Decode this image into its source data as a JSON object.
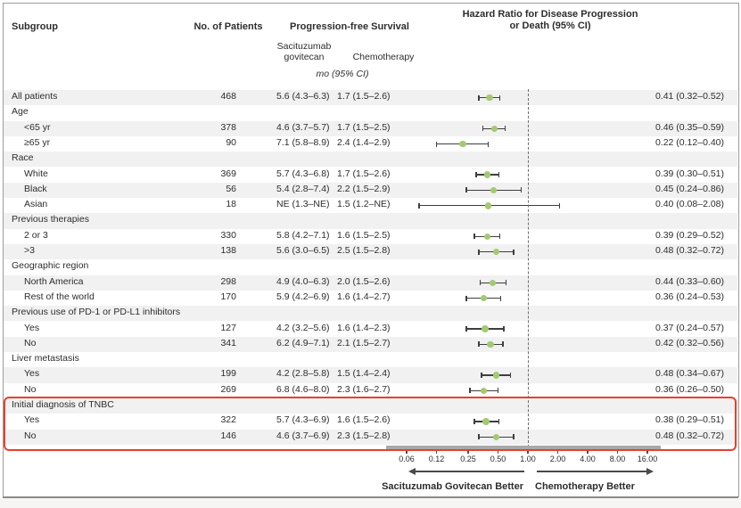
{
  "header": {
    "subgroup": "Subgroup",
    "no_of_patients": "No. of Patients",
    "pfs_title": "Progression-free Survival",
    "hr_title_line1": "Hazard Ratio for Disease Progression",
    "hr_title_line2": "or Death (95% CI)",
    "col_sg_line1": "Sacituzumab",
    "col_sg_line2": "govitecan",
    "col_chemo": "Chemotherapy",
    "units": "mo (95% CI)"
  },
  "footer": {
    "left_label": "Sacituzumab Govitecan Better",
    "right_label": "Chemotherapy Better"
  },
  "axis": {
    "tick_labels": [
      "0.06",
      "0.12",
      "0.25",
      "0.50",
      "1.00",
      "2.00",
      "4.00",
      "8.00",
      "16.00"
    ],
    "tick_values": [
      0.06,
      0.12,
      0.25,
      0.5,
      1.0,
      2.0,
      4.0,
      8.0,
      16.0
    ],
    "reference_value": 1.0
  },
  "rows": [
    {
      "label": "All patients",
      "indent": 0,
      "n": "468",
      "sg": "5.6 (4.3–6.3)",
      "chemo": "1.7 (1.5–2.6)",
      "hr_text": "0.41 (0.32–0.52)",
      "hr": 0.41,
      "lo": 0.32,
      "hi": 0.52
    },
    {
      "label": "Age",
      "indent": 0,
      "group_header": true
    },
    {
      "label": "<65 yr",
      "indent": 1,
      "n": "378",
      "sg": "4.6 (3.7–5.7)",
      "chemo": "1.7 (1.5–2.5)",
      "hr_text": "0.46 (0.35–0.59)",
      "hr": 0.46,
      "lo": 0.35,
      "hi": 0.59
    },
    {
      "label": "≥65 yr",
      "indent": 1,
      "n": "90",
      "sg": "7.1 (5.8–8.9)",
      "chemo": "2.4 (1.4–2.9)",
      "hr_text": "0.22 (0.12–0.40)",
      "hr": 0.22,
      "lo": 0.12,
      "hi": 0.4
    },
    {
      "label": "Race",
      "indent": 0,
      "group_header": true
    },
    {
      "label": "White",
      "indent": 1,
      "n": "369",
      "sg": "5.7 (4.3–6.8)",
      "chemo": "1.7 (1.5–2.6)",
      "hr_text": "0.39 (0.30–0.51)",
      "hr": 0.39,
      "lo": 0.3,
      "hi": 0.51
    },
    {
      "label": "Black",
      "indent": 1,
      "n": "56",
      "sg": "5.4 (2.8–7.4)",
      "chemo": "2.2 (1.5–2.9)",
      "hr_text": "0.45 (0.24–0.86)",
      "hr": 0.45,
      "lo": 0.24,
      "hi": 0.86
    },
    {
      "label": "Asian",
      "indent": 1,
      "n": "18",
      "sg": "NE (1.3–NE)",
      "chemo": "1.5 (1.2–NE)",
      "hr_text": "0.40 (0.08–2.08)",
      "hr": 0.4,
      "lo": 0.08,
      "hi": 2.08
    },
    {
      "label": "Previous therapies",
      "indent": 0,
      "group_header": true
    },
    {
      "label": "2 or 3",
      "indent": 1,
      "n": "330",
      "sg": "5.8 (4.2–7.1)",
      "chemo": "1.6 (1.5–2.5)",
      "hr_text": "0.39 (0.29–0.52)",
      "hr": 0.39,
      "lo": 0.29,
      "hi": 0.52
    },
    {
      "label": ">3",
      "indent": 1,
      "n": "138",
      "sg": "5.6 (3.0–6.5)",
      "chemo": "2.5 (1.5–2.8)",
      "hr_text": "0.48 (0.32–0.72)",
      "hr": 0.48,
      "lo": 0.32,
      "hi": 0.72
    },
    {
      "label": "Geographic region",
      "indent": 0,
      "group_header": true
    },
    {
      "label": "North America",
      "indent": 1,
      "n": "298",
      "sg": "4.9 (4.0–6.3)",
      "chemo": "2.0 (1.5–2.6)",
      "hr_text": "0.44 (0.33–0.60)",
      "hr": 0.44,
      "lo": 0.33,
      "hi": 0.6
    },
    {
      "label": "Rest of the world",
      "indent": 1,
      "n": "170",
      "sg": "5.9 (4.2–6.9)",
      "chemo": "1.6 (1.4–2.7)",
      "hr_text": "0.36 (0.24–0.53)",
      "hr": 0.36,
      "lo": 0.24,
      "hi": 0.53
    },
    {
      "label": "Previous use of PD-1 or PD-L1 inhibitors",
      "indent": 0,
      "group_header": true
    },
    {
      "label": "Yes",
      "indent": 1,
      "n": "127",
      "sg": "4.2 (3.2–5.6)",
      "chemo": "1.6 (1.4–2.3)",
      "hr_text": "0.37 (0.24–0.57)",
      "hr": 0.37,
      "lo": 0.24,
      "hi": 0.57
    },
    {
      "label": "No",
      "indent": 1,
      "n": "341",
      "sg": "6.2 (4.9–7.1)",
      "chemo": "2.1 (1.5–2.7)",
      "hr_text": "0.42 (0.32–0.56)",
      "hr": 0.42,
      "lo": 0.32,
      "hi": 0.56
    },
    {
      "label": "Liver metastasis",
      "indent": 0,
      "group_header": true
    },
    {
      "label": "Yes",
      "indent": 1,
      "n": "199",
      "sg": "4.2 (2.8–5.8)",
      "chemo": "1.5 (1.4–2.4)",
      "hr_text": "0.48 (0.34–0.67)",
      "hr": 0.48,
      "lo": 0.34,
      "hi": 0.67
    },
    {
      "label": "No",
      "indent": 1,
      "n": "269",
      "sg": "6.8 (4.6–8.0)",
      "chemo": "2.3 (1.6–2.7)",
      "hr_text": "0.36 (0.26–0.50)",
      "hr": 0.36,
      "lo": 0.26,
      "hi": 0.5
    },
    {
      "label": "Initial diagnosis of TNBC",
      "indent": 0,
      "group_header": true
    },
    {
      "label": "Yes",
      "indent": 1,
      "n": "322",
      "sg": "5.7 (4.3–6.9)",
      "chemo": "1.6 (1.5–2.6)",
      "hr_text": "0.38 (0.29–0.51)",
      "hr": 0.38,
      "lo": 0.29,
      "hi": 0.51
    },
    {
      "label": "No",
      "indent": 1,
      "n": "146",
      "sg": "4.6 (3.7–6.9)",
      "chemo": "2.3 (1.5–2.8)",
      "hr_text": "0.48 (0.32–0.72)",
      "hr": 0.48,
      "lo": 0.32,
      "hi": 0.72
    }
  ],
  "highlight": {
    "first_row_index": 20,
    "last_row_index": 22,
    "color": "#e8402c"
  },
  "colors": {
    "row_shade": "#f1f1f1",
    "point_green": "#a3ca73",
    "ci_dark": "#3e3e3e",
    "axis_gray": "#a9a9a9",
    "highlight_red": "#e8402c",
    "text": "#2d2d2d"
  },
  "chart_data": {
    "type": "scatter",
    "variant": "forest-plot",
    "title": "Hazard Ratio for Disease Progression or Death (95% CI)",
    "x_scale": "log2",
    "x_ticks": [
      0.06,
      0.12,
      0.25,
      0.5,
      1.0,
      2.0,
      4.0,
      8.0,
      16.0
    ],
    "reference_line": 1.0,
    "legend_position": "none",
    "direction_labels": {
      "left": "Sacituzumab Govitecan Better",
      "right": "Chemotherapy Better"
    },
    "categories": [
      "All patients",
      "<65 yr",
      "≥65 yr",
      "White",
      "Black",
      "Asian",
      "2 or 3",
      ">3",
      "North America",
      "Rest of the world",
      "PD-1/PD-L1 inhibitors: Yes",
      "PD-1/PD-L1 inhibitors: No",
      "Liver metastasis: Yes",
      "Liver metastasis: No",
      "Initial diagnosis of TNBC: Yes",
      "Initial diagnosis of TNBC: No"
    ],
    "series": [
      {
        "name": "Hazard ratio",
        "values": [
          0.41,
          0.46,
          0.22,
          0.39,
          0.45,
          0.4,
          0.39,
          0.48,
          0.44,
          0.36,
          0.37,
          0.42,
          0.48,
          0.36,
          0.38,
          0.48
        ]
      },
      {
        "name": "CI lower",
        "values": [
          0.32,
          0.35,
          0.12,
          0.3,
          0.24,
          0.08,
          0.29,
          0.32,
          0.33,
          0.24,
          0.24,
          0.32,
          0.34,
          0.26,
          0.29,
          0.32
        ]
      },
      {
        "name": "CI upper",
        "values": [
          0.52,
          0.59,
          0.4,
          0.51,
          0.86,
          2.08,
          0.52,
          0.72,
          0.6,
          0.53,
          0.57,
          0.56,
          0.67,
          0.5,
          0.51,
          0.72
        ]
      }
    ]
  }
}
